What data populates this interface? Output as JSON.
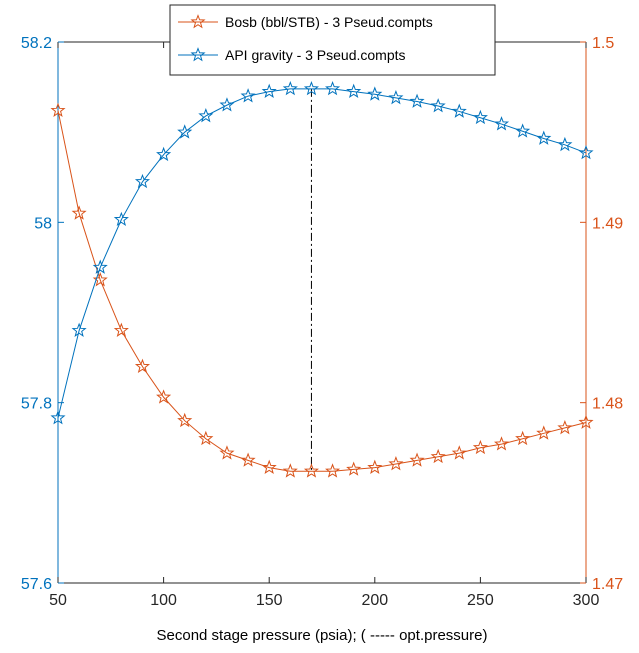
{
  "chart_data": {
    "type": "line",
    "xlabel": "Second stage pressure (psia); ( ----- opt.pressure)",
    "x": [
      50,
      60,
      70,
      80,
      90,
      100,
      110,
      120,
      130,
      140,
      150,
      160,
      170,
      180,
      190,
      200,
      210,
      220,
      230,
      240,
      250,
      260,
      270,
      280,
      290,
      300
    ],
    "xlim": [
      50,
      300
    ],
    "xticks": [
      "50",
      "100",
      "150",
      "200",
      "250",
      "300"
    ],
    "y_left": {
      "lim": [
        57.6,
        58.2
      ],
      "ticks": [
        "57.6",
        "57.8",
        "58",
        "58.2"
      ],
      "color": "#0072BD"
    },
    "y_right": {
      "lim": [
        1.47,
        1.5
      ],
      "ticks": [
        "1.47",
        "1.48",
        "1.49",
        "1.5"
      ],
      "color": "#D95319"
    },
    "series": [
      {
        "name": "Bosb (bbl/STB) - 3 Pseud.compts",
        "axis": "right",
        "color": "#D95319",
        "marker": "star",
        "values": [
          1.4962,
          1.4905,
          1.4868,
          1.484,
          1.482,
          1.4803,
          1.479,
          1.478,
          1.4772,
          1.4768,
          1.4764,
          1.4762,
          1.4762,
          1.4762,
          1.4763,
          1.4764,
          1.4766,
          1.4768,
          1.477,
          1.4772,
          1.4775,
          1.4777,
          1.478,
          1.4783,
          1.4786,
          1.4789
        ]
      },
      {
        "name": "API gravity - 3 Pseud.compts",
        "axis": "left",
        "color": "#0072BD",
        "marker": "star",
        "values": [
          57.783,
          57.88,
          57.95,
          58.003,
          58.045,
          58.075,
          58.1,
          58.118,
          58.13,
          58.14,
          58.145,
          58.148,
          58.148,
          58.148,
          58.145,
          58.142,
          58.138,
          58.134,
          58.129,
          58.123,
          58.116,
          58.109,
          58.101,
          58.093,
          58.086,
          58.077
        ]
      }
    ],
    "opt_pressure": 170,
    "grid": false,
    "legend_position": "top"
  }
}
